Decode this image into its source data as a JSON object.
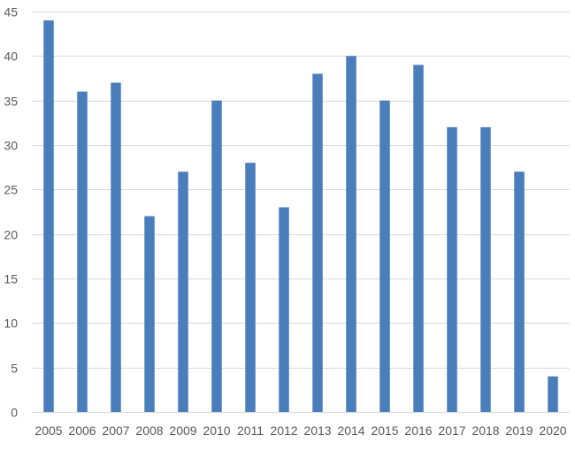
{
  "chart_data": {
    "type": "bar",
    "title": "",
    "xlabel": "",
    "ylabel": "",
    "categories": [
      "2005",
      "2006",
      "2007",
      "2008",
      "2009",
      "2010",
      "2011",
      "2012",
      "2013",
      "2014",
      "2015",
      "2016",
      "2017",
      "2018",
      "2019",
      "2020"
    ],
    "values": [
      44,
      36,
      37,
      22,
      27,
      35,
      28,
      23,
      38,
      40,
      35,
      39,
      32,
      32,
      27,
      4
    ],
    "ylim": [
      0,
      45
    ],
    "yticks": [
      0,
      5,
      10,
      15,
      20,
      25,
      30,
      35,
      40,
      45
    ],
    "grid": true,
    "legend": "none",
    "colors": {
      "bar": "#4a7ebb",
      "grid": "#d9d9d9",
      "axis_text": "#595959"
    }
  }
}
